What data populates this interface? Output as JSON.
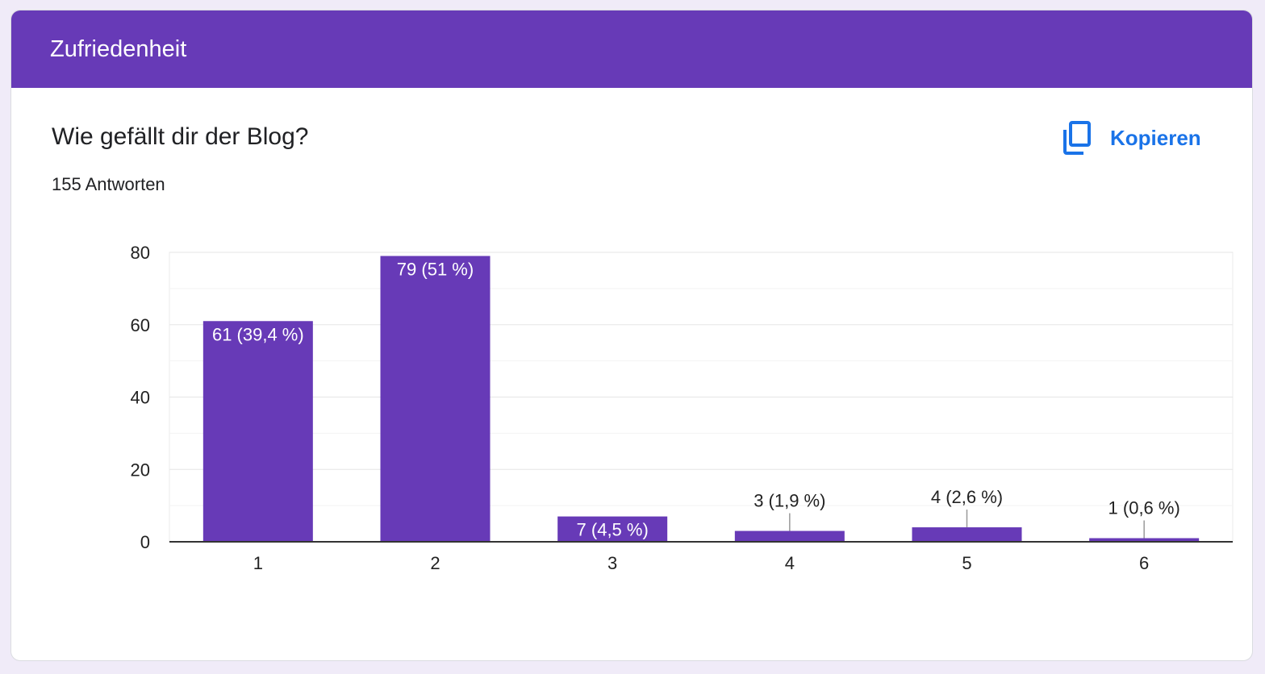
{
  "section": {
    "title": "Zufriedenheit"
  },
  "question": {
    "title": "Wie gefällt dir der Blog?",
    "responses": "155 Antworten"
  },
  "copy": {
    "label": "Kopieren",
    "icon": "copy-icon"
  },
  "colors": {
    "bar": "#673ab7",
    "header": "#673ab7",
    "accent": "#1a73e8"
  },
  "chart_data": {
    "type": "bar",
    "categories": [
      "1",
      "2",
      "3",
      "4",
      "5",
      "6"
    ],
    "values": [
      61,
      79,
      7,
      3,
      4,
      1
    ],
    "data_labels": [
      "61 (39,4 %)",
      "79 (51 %)",
      "7 (4,5 %)",
      "3 (1,9 %)",
      "4 (2,6 %)",
      "1 (0,6 %)"
    ],
    "yticks": [
      0,
      20,
      40,
      60,
      80
    ],
    "ylim": [
      0,
      80
    ],
    "grid": true,
    "title": "",
    "xlabel": "",
    "ylabel": ""
  }
}
